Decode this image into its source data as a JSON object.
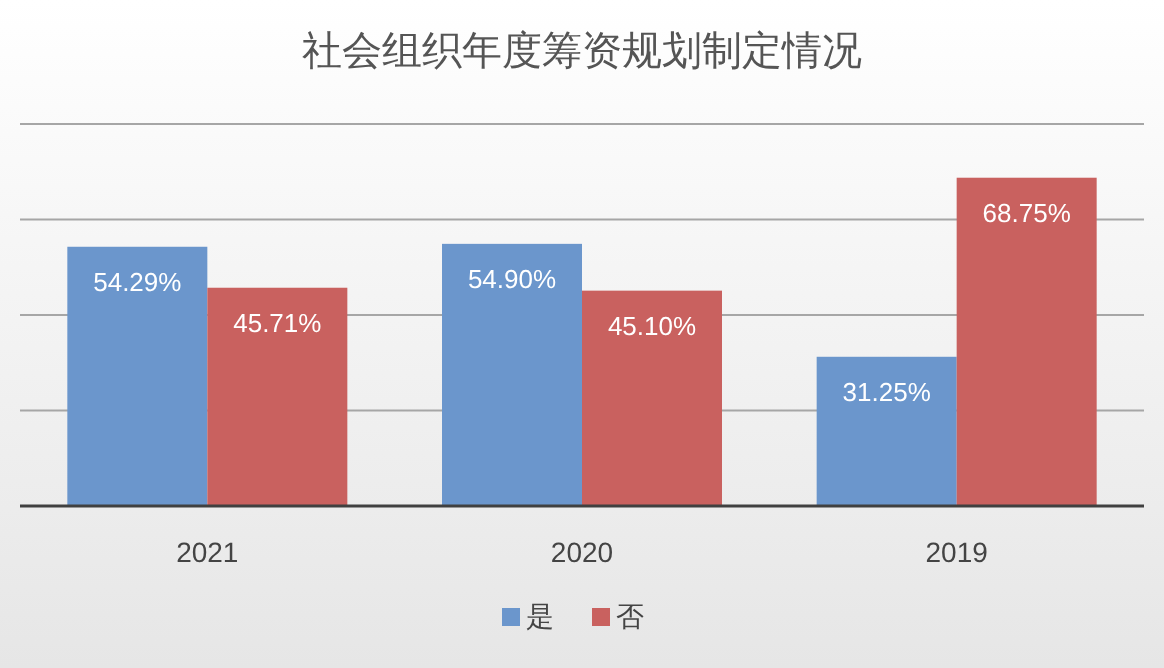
{
  "chart_data": {
    "type": "bar",
    "title": "社会组织年度筹资规划制定情况",
    "categories": [
      "2021",
      "2020",
      "2019"
    ],
    "series": [
      {
        "name": "是",
        "color": "#6b96cc",
        "values": [
          54.29,
          54.9,
          31.25
        ],
        "value_labels": [
          "54.29%",
          "54.90%",
          "31.25%"
        ]
      },
      {
        "name": "否",
        "color": "#c9615f",
        "values": [
          45.71,
          45.1,
          68.75
        ],
        "value_labels": [
          "45.71%",
          "45.10%",
          "68.75%"
        ]
      }
    ],
    "ylim": [
      0,
      80
    ],
    "yticks": [
      {
        "value": 0,
        "label": null
      },
      {
        "value": 20,
        "label": null
      },
      {
        "value": 40,
        "label": null
      },
      {
        "value": 60,
        "label": null
      },
      {
        "value": 80,
        "label": null
      }
    ],
    "tick_labels": "x",
    "grid": "y",
    "legend": "bottom"
  }
}
